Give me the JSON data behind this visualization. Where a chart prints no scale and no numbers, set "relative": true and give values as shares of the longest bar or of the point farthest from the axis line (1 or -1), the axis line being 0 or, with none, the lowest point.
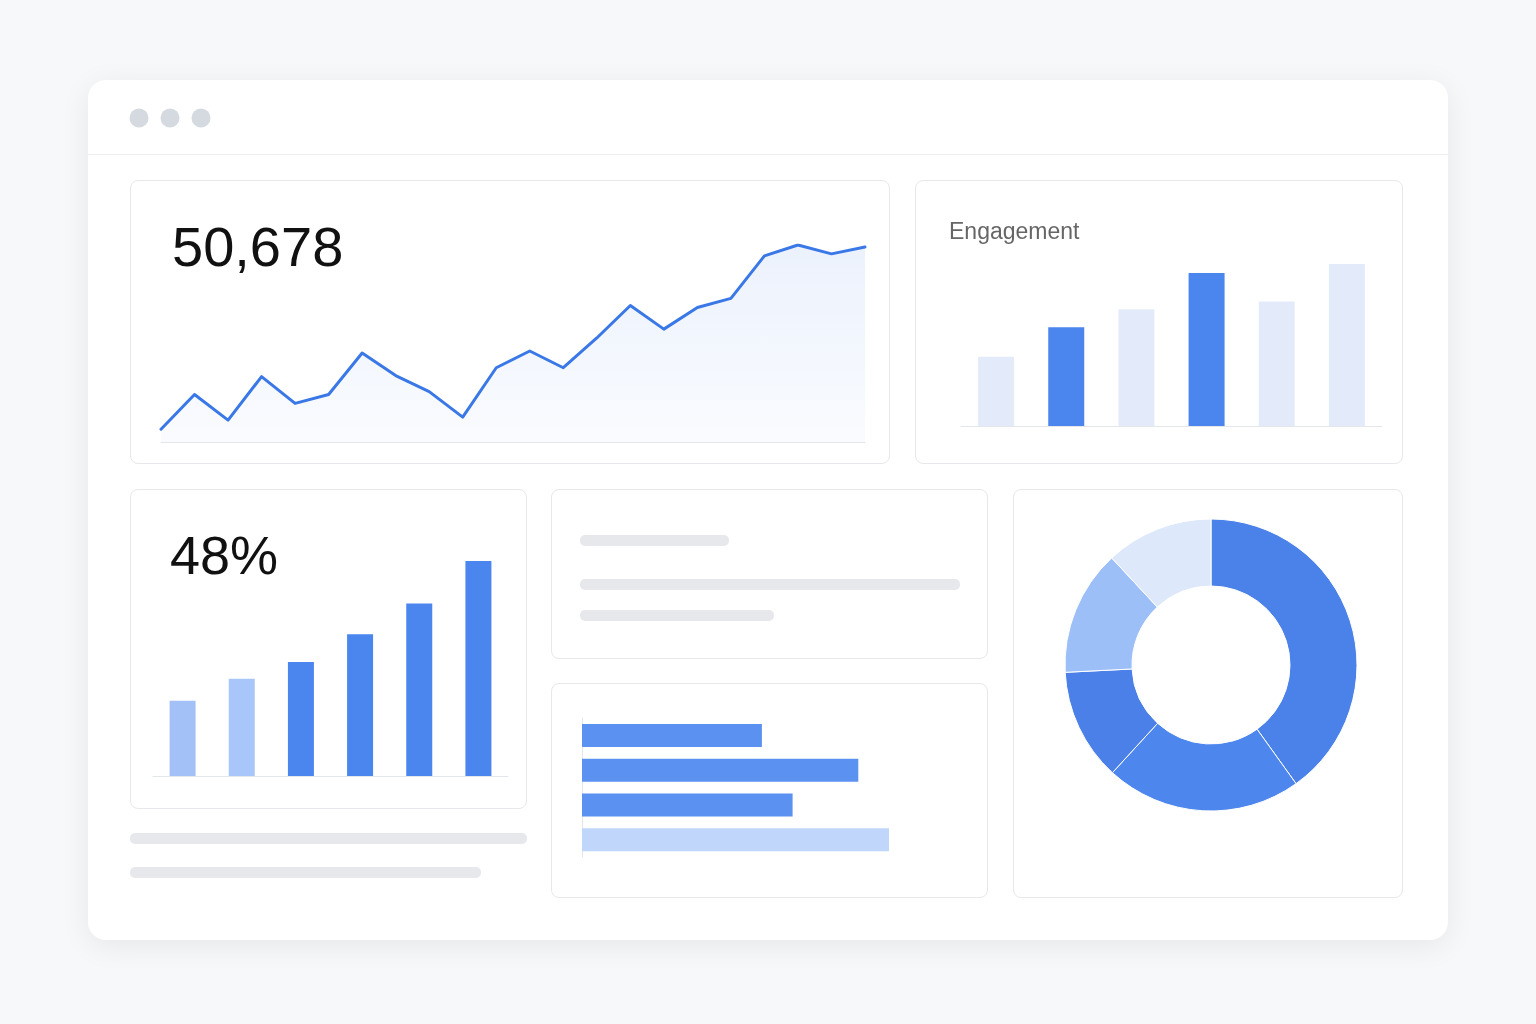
{
  "chart_data": [
    {
      "type": "area",
      "title": "50,678",
      "relative": true,
      "color": "#3b78e7",
      "categories": [
        null,
        null,
        null,
        null,
        null,
        null,
        null,
        null,
        null,
        null,
        null,
        null,
        null,
        null,
        null,
        null,
        null,
        null,
        null,
        null,
        null,
        null
      ],
      "values": [
        0.065,
        0.241,
        0.111,
        0.332,
        0.196,
        0.241,
        0.452,
        0.337,
        0.256,
        0.126,
        0.377,
        0.462,
        0.377,
        0.528,
        0.693,
        0.573,
        0.683,
        0.729,
        0.945,
        1,
        0.955,
        0.99
      ]
    },
    {
      "type": "bar",
      "title": "Engagement",
      "relative": true,
      "categories": [
        null,
        null,
        null,
        null,
        null,
        null
      ],
      "values": [
        0.427,
        0.61,
        0.72,
        0.945,
        0.768,
        1
      ],
      "colors": [
        "#e3ebfb",
        "#4a86ee",
        "#e3ebfb",
        "#4a86ee",
        "#e3ebfb",
        "#e3ebfb"
      ]
    },
    {
      "type": "bar",
      "title": "48%",
      "relative": true,
      "categories": [
        null,
        null,
        null,
        null,
        null,
        null
      ],
      "values": [
        0.35,
        0.452,
        0.53,
        0.659,
        0.802,
        1
      ],
      "colors": [
        "#a4c1f7",
        "#a9c6fa",
        "#4a86ee",
        "#4a86ee",
        "#4a86ee",
        "#4a86ee"
      ]
    },
    {
      "type": "bar",
      "orientation": "horizontal",
      "relative": true,
      "categories": [
        null,
        null,
        null,
        null
      ],
      "values": [
        0.586,
        0.9,
        0.686,
        1
      ],
      "colors": [
        "#5b92f2",
        "#5b92f2",
        "#5b92f2",
        "#c0d6fb"
      ]
    },
    {
      "type": "donut",
      "categories": [
        null,
        null,
        null,
        null,
        null
      ],
      "values": [
        40.1,
        21.7,
        12.4,
        13.9,
        11.9
      ],
      "colors": [
        "#4a82ea",
        "#4d87ee",
        "#4a80e8",
        "#9dbff8",
        "#dde8fb"
      ]
    }
  ]
}
